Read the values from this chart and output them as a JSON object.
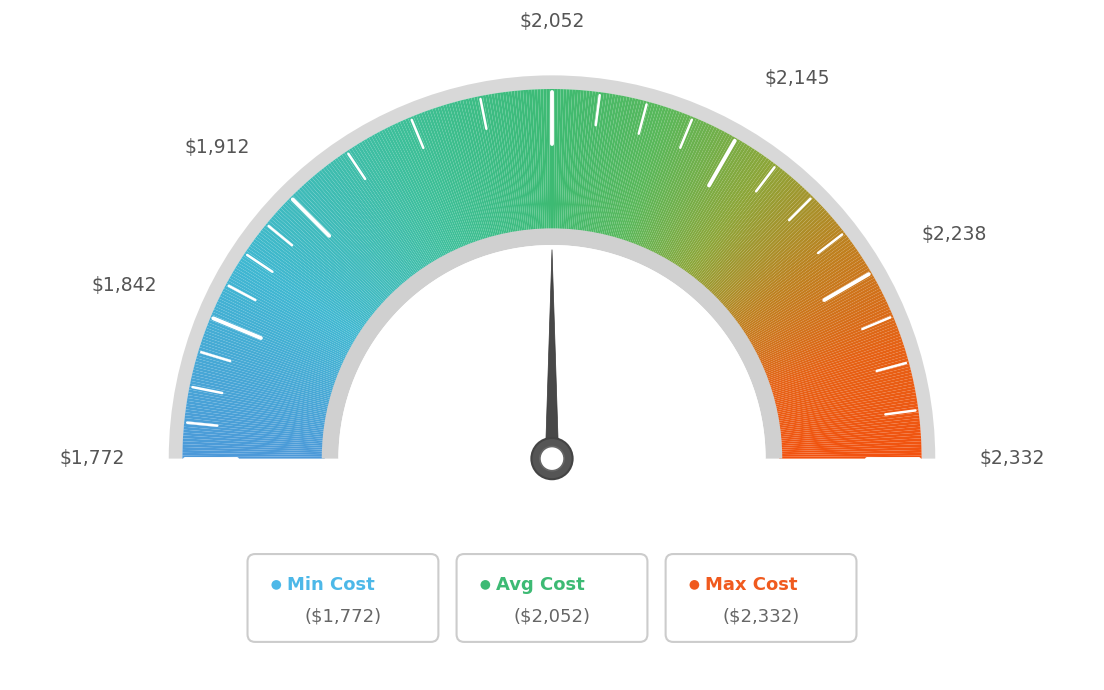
{
  "min_val": 1772,
  "max_val": 2332,
  "avg_val": 2052,
  "labels": [
    "$1,772",
    "$1,842",
    "$1,912",
    "$2,052",
    "$2,145",
    "$2,238",
    "$2,332"
  ],
  "label_values": [
    1772,
    1842,
    1912,
    2052,
    2145,
    2238,
    2332
  ],
  "min_cost_label": "Min Cost",
  "avg_cost_label": "Avg Cost",
  "max_cost_label": "Max Cost",
  "min_cost_value": "($1,772)",
  "avg_cost_value": "($2,052)",
  "max_cost_value": "($2,332)",
  "min_color": "#4db8e8",
  "avg_color": "#3dba74",
  "max_color": "#f05a1e",
  "background_color": "#ffffff",
  "needle_value": 2052,
  "color_stops": [
    [
      0.0,
      [
        0.3,
        0.6,
        0.85
      ]
    ],
    [
      0.18,
      [
        0.25,
        0.72,
        0.82
      ]
    ],
    [
      0.36,
      [
        0.24,
        0.75,
        0.6
      ]
    ],
    [
      0.5,
      [
        0.24,
        0.73,
        0.45
      ]
    ],
    [
      0.6,
      [
        0.35,
        0.72,
        0.35
      ]
    ],
    [
      0.7,
      [
        0.55,
        0.65,
        0.22
      ]
    ],
    [
      0.8,
      [
        0.75,
        0.5,
        0.12
      ]
    ],
    [
      0.9,
      [
        0.9,
        0.38,
        0.08
      ]
    ],
    [
      1.0,
      [
        0.95,
        0.32,
        0.06
      ]
    ]
  ]
}
